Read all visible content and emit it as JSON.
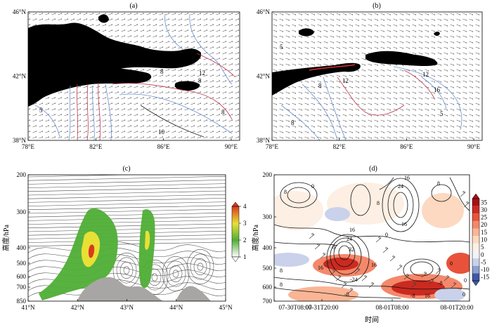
{
  "chart_data": [
    {
      "type": "map",
      "panel_label": "(a)",
      "x_ticks": [
        "78°E",
        "82°E",
        "86°E",
        "90°E"
      ],
      "y_ticks": [
        "38°N",
        "42°N",
        "46°N"
      ],
      "xlim": [
        78,
        90.5
      ],
      "ylim": [
        38,
        46
      ],
      "contour_labels": [
        "5",
        "8",
        "8",
        "12",
        "16",
        "12",
        "8",
        "5",
        "10",
        "8"
      ]
    },
    {
      "type": "map",
      "panel_label": "(b)",
      "x_ticks": [
        "78°E",
        "82°E",
        "86°E",
        "90°E"
      ],
      "y_ticks": [
        "38°N",
        "42°N",
        "46°N"
      ],
      "xlim": [
        78,
        90.5
      ],
      "ylim": [
        38,
        46
      ],
      "contour_labels": [
        "5",
        "8",
        "12",
        "12",
        "16",
        "8",
        "5"
      ]
    },
    {
      "type": "streamline-cross-section",
      "panel_label": "(c)",
      "ylabel": "高度/hPa",
      "x_ticks": [
        "41°N",
        "42°N",
        "43°N",
        "44°N",
        "45°N"
      ],
      "y_ticks": [
        "200",
        "300",
        "400",
        "500",
        "600",
        "700",
        "850"
      ],
      "xlim": [
        41,
        45
      ],
      "ylim": [
        850,
        200
      ],
      "colorbar": {
        "ticks": [
          "1",
          "2",
          "3",
          "4"
        ],
        "colors": [
          "#ffffff",
          "#4fae35",
          "#e8e035",
          "#d83a1e"
        ]
      }
    },
    {
      "type": "contour-time-height",
      "panel_label": "(d)",
      "ylabel": "高度/hPa",
      "xlabel": "时间",
      "x_ticks": [
        "07-30T08:00",
        "07-31T20:00",
        "08-01T08:00",
        "08-01T20:00"
      ],
      "y_ticks": [
        "200",
        "300",
        "400",
        "500",
        "600",
        "700"
      ],
      "ylim": [
        700,
        200
      ],
      "contour_labels": [
        "8",
        "0",
        "8",
        "16",
        "24",
        "8",
        "16",
        "0",
        "8",
        "16",
        "24",
        "32",
        "16",
        "16",
        "8",
        "0",
        "8",
        "-24",
        "-8",
        "-8",
        "0",
        "-8",
        "16",
        "0"
      ],
      "colorbar": {
        "ticks": [
          "35",
          "30",
          "25",
          "20",
          "15",
          "10",
          "5",
          "0",
          "-5",
          "-10",
          "-15"
        ],
        "colors": [
          "#a50f15",
          "#cb2a20",
          "#e8523a",
          "#f4886a",
          "#f9b595",
          "#fcd9c0",
          "#fdefe3",
          "#f2f2f7",
          "#c9d2ea",
          "#8da0cf",
          "#3f57a5"
        ]
      }
    }
  ]
}
